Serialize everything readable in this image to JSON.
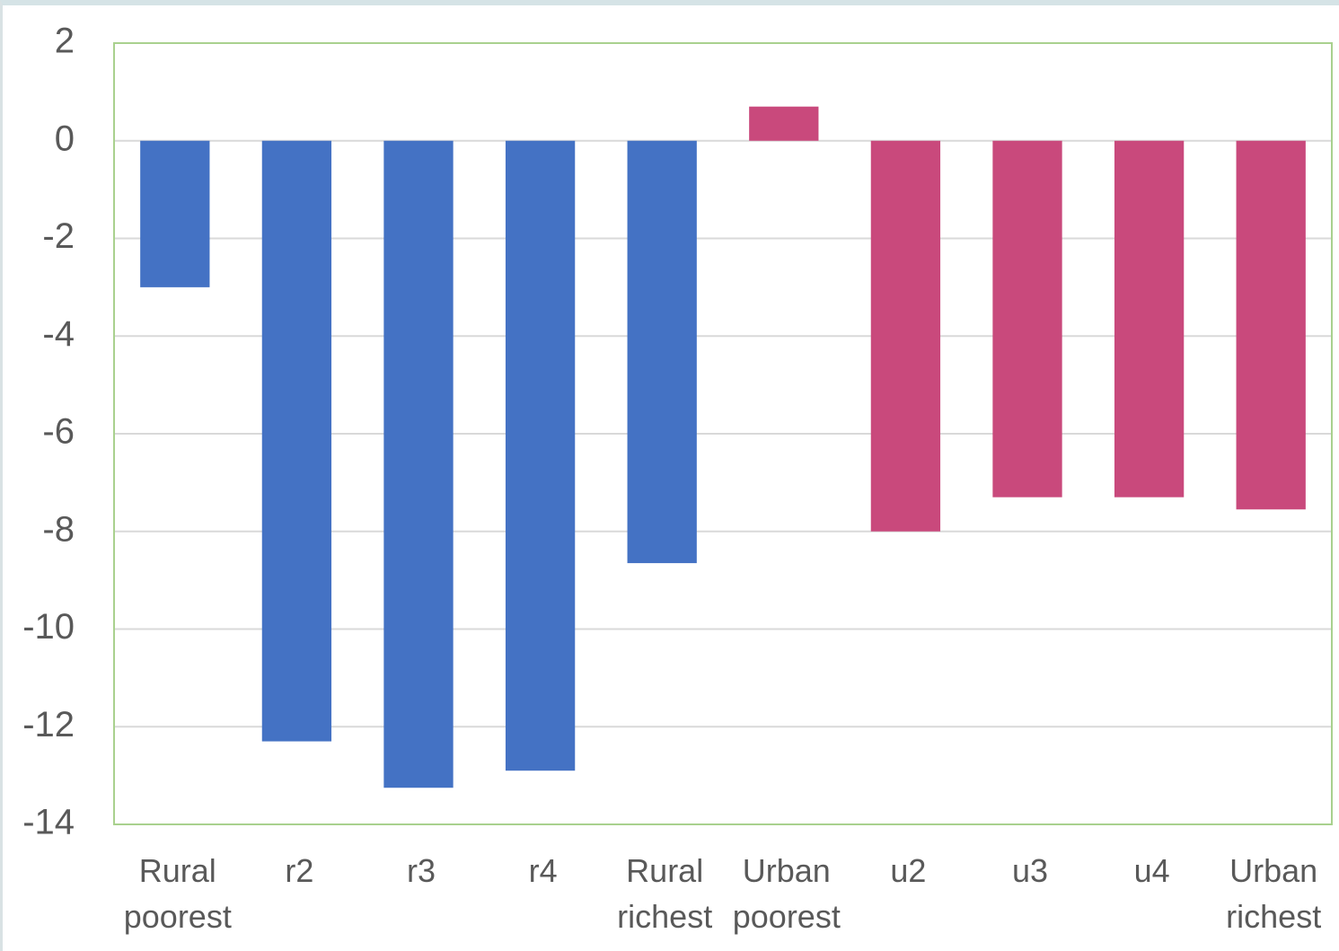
{
  "chart_data": {
    "type": "bar",
    "categories": [
      "Rural poorest",
      "r2",
      "r3",
      "r4",
      "Rural richest",
      "Urban poorest",
      "u2",
      "u3",
      "u4",
      "Urban richest"
    ],
    "values": [
      -3.0,
      -12.3,
      -13.25,
      -12.9,
      -8.65,
      0.7,
      -8.0,
      -7.3,
      -7.3,
      -7.55
    ],
    "colors": [
      "#4472c4",
      "#4472c4",
      "#4472c4",
      "#4472c4",
      "#4472c4",
      "#c9497c",
      "#c9497c",
      "#c9497c",
      "#c9497c",
      "#c9497c"
    ],
    "ylim": [
      -14,
      2
    ],
    "yticks": [
      -14,
      -12,
      -10,
      -8,
      -6,
      -4,
      -2,
      0,
      2
    ],
    "grid": true
  }
}
